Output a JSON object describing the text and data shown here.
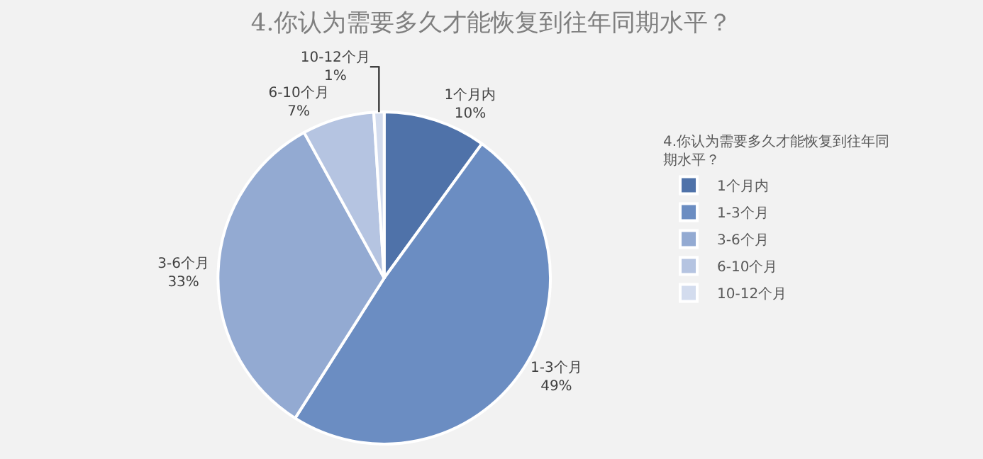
{
  "chart_data": {
    "type": "pie",
    "title": "4.你认为需要多久才能恢复到往年同期水平？",
    "legend_title": "4.你认为需要多久才能恢复到往年同期水平？",
    "categories": [
      "1个月内",
      "1-3个月",
      "3-6个月",
      "6-10个月",
      "10-12个月"
    ],
    "values": [
      10,
      49,
      33,
      7,
      1
    ],
    "colors": [
      "#4f72a9",
      "#6b8dc2",
      "#93aad2",
      "#b5c4e1",
      "#d3dcee"
    ],
    "value_labels": [
      "10%",
      "49%",
      "33%",
      "7%",
      "1%"
    ],
    "legend": "right"
  }
}
